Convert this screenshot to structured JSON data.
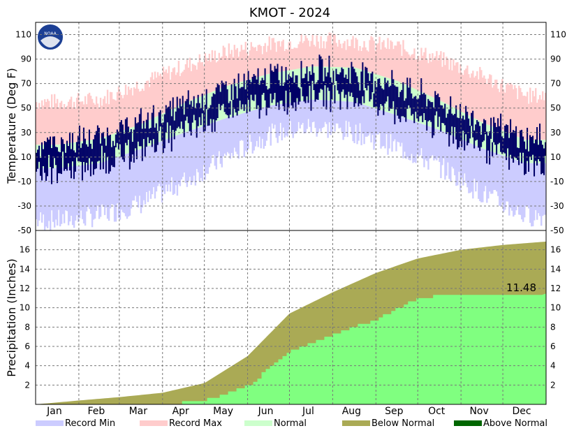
{
  "title": "KMOT - 2024",
  "logo_text": "NOAA",
  "colors": {
    "record_min": "#ccccff",
    "record_max": "#ffcccc",
    "normal": "#ccffcc",
    "observed_temp": "#000066",
    "below_normal": "#aaaa55",
    "above_normal": "#006600",
    "observed_precip": "#80ff80"
  },
  "chart_data": [
    {
      "type": "bar",
      "name": "temperature",
      "ylabel": "Temperature (Deg F)",
      "ylim": [
        -50,
        120
      ],
      "yticks": [
        110,
        90,
        70,
        50,
        30,
        10,
        -10,
        -30,
        -50
      ],
      "grid": true,
      "months": [
        "Jan",
        "Feb",
        "Mar",
        "Apr",
        "May",
        "Jun",
        "Jul",
        "Aug",
        "Sep",
        "Oct",
        "Nov",
        "Dec"
      ],
      "series": [
        {
          "name": "Record Max",
          "monthly_values": [
            55,
            57,
            70,
            84,
            96,
            102,
            106,
            104,
            100,
            90,
            76,
            60
          ]
        },
        {
          "name": "Record Min",
          "monthly_values": [
            -42,
            -38,
            -28,
            -10,
            10,
            28,
            35,
            30,
            18,
            2,
            -20,
            -38
          ]
        },
        {
          "name": "Normal",
          "high_values": [
            20,
            25,
            37,
            54,
            68,
            78,
            84,
            83,
            72,
            56,
            38,
            24
          ],
          "low_values": [
            1,
            5,
            17,
            30,
            42,
            52,
            57,
            55,
            44,
            32,
            17,
            5
          ]
        }
      ]
    },
    {
      "type": "area",
      "name": "precipitation",
      "ylabel": "Precipitation (Inches)",
      "ylim": [
        0,
        18
      ],
      "yticks": [
        16,
        14,
        12,
        10,
        8,
        6,
        4,
        2
      ],
      "grid": true,
      "months": [
        "Jan",
        "Feb",
        "Mar",
        "Apr",
        "May",
        "Jun",
        "Jul",
        "Aug",
        "Sep",
        "Oct",
        "Nov",
        "Dec"
      ],
      "normal_cumulative": [
        0,
        0.4,
        0.75,
        1.2,
        2.2,
        5.0,
        9.4,
        11.6,
        13.6,
        15.1,
        16.0,
        16.5,
        16.85
      ],
      "observed_cumulative": [
        0,
        0,
        0,
        0,
        0.4,
        2.0,
        5.5,
        7.3,
        8.8,
        11.1,
        11.3,
        11.4,
        11.48
      ],
      "annotation": "11.48"
    }
  ],
  "legend": [
    {
      "label": "Record Min",
      "color": "#ccccff"
    },
    {
      "label": "Record Max",
      "color": "#ffcccc"
    },
    {
      "label": "Normal",
      "color": "#ccffcc"
    },
    {
      "label": "Below Normal",
      "color": "#aaaa55"
    },
    {
      "label": "Above Normal",
      "color": "#006600"
    }
  ]
}
